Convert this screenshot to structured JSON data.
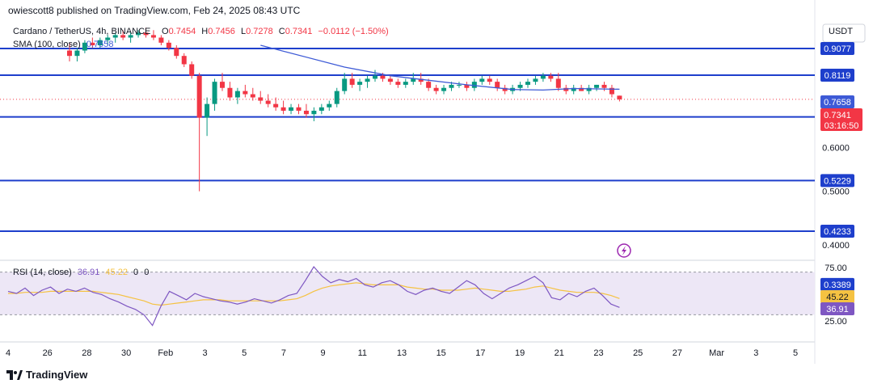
{
  "header": {
    "published_line": "owiescott8 published on TradingView.com, Feb 24, 2025 08:43 UTC"
  },
  "legend": {
    "symbol": "Cardano / TetherUS, 4h, BINANCE",
    "o_label": "O",
    "o_value": "0.7454",
    "h_label": "H",
    "h_value": "0.7456",
    "l_label": "L",
    "l_value": "0.7278",
    "c_label": "C",
    "c_value": "0.7341",
    "change": "−0.0112 (−1.50%)",
    "sma": "SMA (100, close)",
    "sma_value": "0.7658"
  },
  "price_axis": {
    "currency": "USDT",
    "ticks": [
      "0.6000",
      "0.5000",
      "0.4000"
    ]
  },
  "levels": [
    {
      "value": 0.9077,
      "label": "0.9077"
    },
    {
      "value": 0.8119,
      "label": "0.8119"
    },
    {
      "value": 0.6822,
      "label": "0.6822"
    },
    {
      "value": 0.5229,
      "label": "0.5229"
    },
    {
      "value": 0.4233,
      "label": "0.4233"
    },
    {
      "value": 0.3389,
      "label": "0.3389"
    }
  ],
  "badges": {
    "sma_badge": "0.7658",
    "last_price": "0.7341",
    "countdown": "03:16:50"
  },
  "rsi": {
    "title": "RSI (14, close)",
    "value": "36.91",
    "ma_value": "45.22",
    "extra1": "0",
    "extra2": "0",
    "ticks": [
      "75.00",
      "25.00"
    ],
    "badge_ma": "45.22",
    "badge_rsi": "36.91"
  },
  "time_axis": {
    "labels": [
      "4",
      "26",
      "28",
      "30",
      "Feb",
      "3",
      "5",
      "7",
      "9",
      "11",
      "13",
      "15",
      "17",
      "19",
      "21",
      "23",
      "25",
      "27",
      "Mar",
      "3",
      "5"
    ]
  },
  "footer": {
    "brand": "TradingView"
  },
  "colors": {
    "level_line": "#1e3fcc",
    "sma": "#3d5ad6",
    "up": "#089981",
    "down": "#f23645",
    "rsi": "#7e57c2",
    "rsi_ma": "#f5c242",
    "rsi_band": "#ede7f6"
  },
  "chart_data": {
    "type": "candlestick",
    "interval": "4h",
    "y_scale": "log",
    "candles": [
      {
        "o": 0.9,
        "h": 0.93,
        "l": 0.86,
        "c": 0.88
      },
      {
        "o": 0.88,
        "h": 0.91,
        "l": 0.86,
        "c": 0.9
      },
      {
        "o": 0.9,
        "h": 0.94,
        "l": 0.89,
        "c": 0.93
      },
      {
        "o": 0.93,
        "h": 0.95,
        "l": 0.91,
        "c": 0.92
      },
      {
        "o": 0.92,
        "h": 0.95,
        "l": 0.91,
        "c": 0.94
      },
      {
        "o": 0.94,
        "h": 0.96,
        "l": 0.92,
        "c": 0.95
      },
      {
        "o": 0.95,
        "h": 0.97,
        "l": 0.93,
        "c": 0.96
      },
      {
        "o": 0.96,
        "h": 0.98,
        "l": 0.94,
        "c": 0.95
      },
      {
        "o": 0.95,
        "h": 0.97,
        "l": 0.93,
        "c": 0.96
      },
      {
        "o": 0.96,
        "h": 0.98,
        "l": 0.95,
        "c": 0.97
      },
      {
        "o": 0.97,
        "h": 0.99,
        "l": 0.95,
        "c": 0.96
      },
      {
        "o": 0.96,
        "h": 0.98,
        "l": 0.94,
        "c": 0.95
      },
      {
        "o": 0.95,
        "h": 0.96,
        "l": 0.92,
        "c": 0.93
      },
      {
        "o": 0.93,
        "h": 0.94,
        "l": 0.9,
        "c": 0.91
      },
      {
        "o": 0.91,
        "h": 0.92,
        "l": 0.87,
        "c": 0.88
      },
      {
        "o": 0.88,
        "h": 0.89,
        "l": 0.84,
        "c": 0.85
      },
      {
        "o": 0.85,
        "h": 0.86,
        "l": 0.8,
        "c": 0.81
      },
      {
        "o": 0.81,
        "h": 0.82,
        "l": 0.5,
        "c": 0.68
      },
      {
        "o": 0.68,
        "h": 0.74,
        "l": 0.63,
        "c": 0.72
      },
      {
        "o": 0.72,
        "h": 0.8,
        "l": 0.7,
        "c": 0.79
      },
      {
        "o": 0.79,
        "h": 0.82,
        "l": 0.76,
        "c": 0.77
      },
      {
        "o": 0.77,
        "h": 0.79,
        "l": 0.73,
        "c": 0.74
      },
      {
        "o": 0.74,
        "h": 0.77,
        "l": 0.72,
        "c": 0.76
      },
      {
        "o": 0.76,
        "h": 0.78,
        "l": 0.74,
        "c": 0.75
      },
      {
        "o": 0.75,
        "h": 0.77,
        "l": 0.73,
        "c": 0.74
      },
      {
        "o": 0.74,
        "h": 0.76,
        "l": 0.72,
        "c": 0.73
      },
      {
        "o": 0.73,
        "h": 0.75,
        "l": 0.71,
        "c": 0.72
      },
      {
        "o": 0.72,
        "h": 0.74,
        "l": 0.7,
        "c": 0.71
      },
      {
        "o": 0.71,
        "h": 0.73,
        "l": 0.69,
        "c": 0.7
      },
      {
        "o": 0.7,
        "h": 0.72,
        "l": 0.69,
        "c": 0.71
      },
      {
        "o": 0.71,
        "h": 0.72,
        "l": 0.69,
        "c": 0.7
      },
      {
        "o": 0.7,
        "h": 0.72,
        "l": 0.68,
        "c": 0.69
      },
      {
        "o": 0.69,
        "h": 0.71,
        "l": 0.67,
        "c": 0.7
      },
      {
        "o": 0.7,
        "h": 0.72,
        "l": 0.69,
        "c": 0.71
      },
      {
        "o": 0.71,
        "h": 0.73,
        "l": 0.7,
        "c": 0.72
      },
      {
        "o": 0.72,
        "h": 0.77,
        "l": 0.71,
        "c": 0.76
      },
      {
        "o": 0.76,
        "h": 0.82,
        "l": 0.75,
        "c": 0.8
      },
      {
        "o": 0.8,
        "h": 0.82,
        "l": 0.77,
        "c": 0.78
      },
      {
        "o": 0.78,
        "h": 0.8,
        "l": 0.76,
        "c": 0.79
      },
      {
        "o": 0.79,
        "h": 0.81,
        "l": 0.77,
        "c": 0.8
      },
      {
        "o": 0.8,
        "h": 0.83,
        "l": 0.79,
        "c": 0.81
      },
      {
        "o": 0.81,
        "h": 0.82,
        "l": 0.79,
        "c": 0.8
      },
      {
        "o": 0.8,
        "h": 0.81,
        "l": 0.78,
        "c": 0.79
      },
      {
        "o": 0.79,
        "h": 0.8,
        "l": 0.77,
        "c": 0.78
      },
      {
        "o": 0.78,
        "h": 0.8,
        "l": 0.77,
        "c": 0.79
      },
      {
        "o": 0.79,
        "h": 0.82,
        "l": 0.78,
        "c": 0.8
      },
      {
        "o": 0.8,
        "h": 0.82,
        "l": 0.78,
        "c": 0.79
      },
      {
        "o": 0.79,
        "h": 0.8,
        "l": 0.76,
        "c": 0.77
      },
      {
        "o": 0.77,
        "h": 0.78,
        "l": 0.75,
        "c": 0.76
      },
      {
        "o": 0.76,
        "h": 0.78,
        "l": 0.75,
        "c": 0.77
      },
      {
        "o": 0.77,
        "h": 0.79,
        "l": 0.76,
        "c": 0.78
      },
      {
        "o": 0.78,
        "h": 0.79,
        "l": 0.77,
        "c": 0.78
      },
      {
        "o": 0.78,
        "h": 0.79,
        "l": 0.76,
        "c": 0.77
      },
      {
        "o": 0.77,
        "h": 0.8,
        "l": 0.76,
        "c": 0.79
      },
      {
        "o": 0.79,
        "h": 0.81,
        "l": 0.78,
        "c": 0.8
      },
      {
        "o": 0.8,
        "h": 0.81,
        "l": 0.78,
        "c": 0.79
      },
      {
        "o": 0.79,
        "h": 0.8,
        "l": 0.76,
        "c": 0.77
      },
      {
        "o": 0.77,
        "h": 0.78,
        "l": 0.75,
        "c": 0.76
      },
      {
        "o": 0.76,
        "h": 0.78,
        "l": 0.75,
        "c": 0.77
      },
      {
        "o": 0.77,
        "h": 0.79,
        "l": 0.76,
        "c": 0.78
      },
      {
        "o": 0.78,
        "h": 0.8,
        "l": 0.77,
        "c": 0.79
      },
      {
        "o": 0.79,
        "h": 0.81,
        "l": 0.78,
        "c": 0.8
      },
      {
        "o": 0.8,
        "h": 0.82,
        "l": 0.79,
        "c": 0.81
      },
      {
        "o": 0.81,
        "h": 0.82,
        "l": 0.79,
        "c": 0.8
      },
      {
        "o": 0.8,
        "h": 0.82,
        "l": 0.76,
        "c": 0.77
      },
      {
        "o": 0.77,
        "h": 0.78,
        "l": 0.75,
        "c": 0.76
      },
      {
        "o": 0.76,
        "h": 0.78,
        "l": 0.75,
        "c": 0.77
      },
      {
        "o": 0.77,
        "h": 0.78,
        "l": 0.76,
        "c": 0.76
      },
      {
        "o": 0.76,
        "h": 0.78,
        "l": 0.75,
        "c": 0.77
      },
      {
        "o": 0.77,
        "h": 0.78,
        "l": 0.76,
        "c": 0.78
      },
      {
        "o": 0.78,
        "h": 0.79,
        "l": 0.76,
        "c": 0.77
      },
      {
        "o": 0.77,
        "h": 0.78,
        "l": 0.74,
        "c": 0.75
      },
      {
        "o": 0.7454,
        "h": 0.7456,
        "l": 0.7278,
        "c": 0.7341
      }
    ],
    "sma": [
      {
        "i": 25,
        "v": 0.92
      },
      {
        "i": 36,
        "v": 0.84
      },
      {
        "i": 42,
        "v": 0.81
      },
      {
        "i": 52,
        "v": 0.78
      },
      {
        "i": 58,
        "v": 0.765
      },
      {
        "i": 62,
        "v": 0.763
      },
      {
        "i": 66,
        "v": 0.768
      },
      {
        "i": 72,
        "v": 0.7658
      }
    ],
    "rsi_values": [
      52,
      50,
      55,
      48,
      53,
      56,
      50,
      54,
      52,
      55,
      51,
      49,
      45,
      42,
      38,
      35,
      30,
      20,
      38,
      52,
      48,
      44,
      50,
      47,
      45,
      43,
      42,
      40,
      42,
      45,
      43,
      41,
      44,
      48,
      50,
      62,
      75,
      66,
      60,
      63,
      61,
      64,
      58,
      56,
      60,
      62,
      58,
      52,
      49,
      53,
      55,
      52,
      50,
      56,
      62,
      58,
      50,
      45,
      50,
      55,
      58,
      62,
      66,
      60,
      46,
      44,
      50,
      47,
      52,
      55,
      48,
      40,
      36.91
    ],
    "rsi_ma_values": [
      50,
      50,
      51,
      51,
      51,
      52,
      52,
      52,
      52,
      52,
      52,
      51,
      50,
      49,
      47,
      45,
      43,
      40,
      39,
      40,
      41,
      42,
      43,
      44,
      44,
      44,
      43,
      43,
      43,
      43,
      43,
      43,
      43,
      44,
      45,
      48,
      52,
      55,
      57,
      58,
      59,
      60,
      59,
      58,
      58,
      58,
      58,
      56,
      55,
      54,
      54,
      53,
      53,
      53,
      54,
      55,
      54,
      53,
      52,
      52,
      53,
      54,
      56,
      57,
      55,
      53,
      52,
      51,
      51,
      51,
      50,
      48,
      45.22
    ],
    "rsi_ylim": [
      0,
      100
    ],
    "rsi_bands": [
      70,
      30
    ],
    "price_ylim": [
      0.32,
      1.02
    ]
  }
}
